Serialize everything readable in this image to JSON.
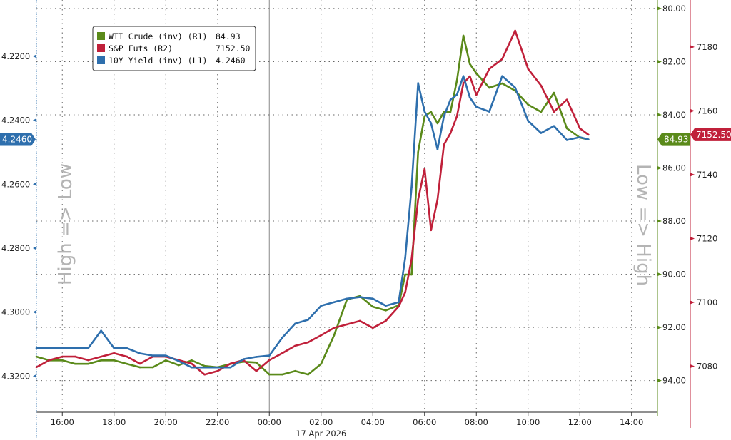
{
  "chart_data": {
    "type": "line",
    "x_axis": {
      "tick_labels": [
        "16:00",
        "18:00",
        "20:00",
        "22:00",
        "00:00",
        "02:00",
        "04:00",
        "06:00",
        "08:00",
        "10:00",
        "12:00",
        "14:00"
      ],
      "date_label": "17 Apr 2026",
      "range": [
        "2026-04-16 15:00",
        "2026-04-17 15:00"
      ]
    },
    "y_axes": {
      "L1": {
        "ticks": [
          "4.2200",
          "4.2400",
          "4.2600",
          "4.2800",
          "4.3000",
          "4.3200"
        ],
        "range": [
          4.2024,
          4.3313
        ],
        "inverted": true,
        "title": "High => Low",
        "color": "#2e6fad"
      },
      "R1": {
        "ticks": [
          "80.00",
          "82.00",
          "84.00",
          "86.00",
          "88.00",
          "90.00",
          "92.00",
          "94.00"
        ],
        "range": [
          79.68,
          95.19
        ],
        "inverted": true,
        "title": "Low => High",
        "color": "#5a8a1a"
      },
      "R2": {
        "ticks": [
          "7080",
          "7100",
          "7120",
          "7140",
          "7160",
          "7180"
        ],
        "range": [
          7065.6,
          7194.7
        ],
        "inverted": false,
        "color": "#c0203a"
      }
    },
    "grid": true,
    "legend_position": "top-left",
    "x": [
      "2026-04-16 15:00",
      "2026-04-16 15:30",
      "2026-04-16 16:00",
      "2026-04-16 16:30",
      "2026-04-16 17:00",
      "2026-04-16 17:30",
      "2026-04-16 18:00",
      "2026-04-16 18:30",
      "2026-04-16 19:00",
      "2026-04-16 19:30",
      "2026-04-16 20:00",
      "2026-04-16 20:30",
      "2026-04-16 21:00",
      "2026-04-16 21:30",
      "2026-04-16 22:00",
      "2026-04-16 22:30",
      "2026-04-16 23:00",
      "2026-04-16 23:30",
      "2026-04-17 00:00",
      "2026-04-17 00:30",
      "2026-04-17 01:00",
      "2026-04-17 01:30",
      "2026-04-17 02:00",
      "2026-04-17 02:30",
      "2026-04-17 03:00",
      "2026-04-17 03:30",
      "2026-04-17 04:00",
      "2026-04-17 04:30",
      "2026-04-17 05:00",
      "2026-04-17 05:15",
      "2026-04-17 05:30",
      "2026-04-17 05:45",
      "2026-04-17 06:00",
      "2026-04-17 06:15",
      "2026-04-17 06:30",
      "2026-04-17 06:45",
      "2026-04-17 07:00",
      "2026-04-17 07:15",
      "2026-04-17 07:30",
      "2026-04-17 07:45",
      "2026-04-17 08:00",
      "2026-04-17 08:30",
      "2026-04-17 09:00",
      "2026-04-17 09:30",
      "2026-04-17 10:00",
      "2026-04-17 10:30",
      "2026-04-17 11:00",
      "2026-04-17 11:30",
      "2026-04-17 12:00",
      "2026-04-17 12:20"
    ],
    "series": [
      {
        "name": "WTI Crude (inv) (R1)",
        "last": "84.93",
        "axis": "R1",
        "color": "#5a8a1a",
        "values": [
          93.1,
          93.24,
          93.24,
          93.37,
          93.37,
          93.24,
          93.24,
          93.37,
          93.5,
          93.5,
          93.24,
          93.42,
          93.24,
          93.45,
          93.5,
          93.37,
          93.29,
          93.32,
          93.77,
          93.77,
          93.64,
          93.77,
          93.37,
          92.3,
          90.95,
          90.82,
          91.22,
          91.36,
          91.17,
          90.01,
          90.01,
          85.4,
          84.05,
          83.89,
          84.32,
          83.89,
          83.89,
          82.71,
          81.02,
          82.09,
          82.44,
          82.98,
          82.82,
          83.09,
          83.62,
          83.89,
          83.17,
          84.51,
          84.86,
          84.93
        ]
      },
      {
        "name": "S&P Futs (R2)",
        "last": "7152.50",
        "axis": "R2",
        "color": "#c0203a",
        "values": [
          7079.7,
          7081.9,
          7083.0,
          7083.0,
          7081.9,
          7083.0,
          7084.1,
          7083.0,
          7080.8,
          7083.0,
          7083.0,
          7081.9,
          7080.8,
          7077.4,
          7078.5,
          7080.8,
          7081.9,
          7078.5,
          7081.9,
          7084.1,
          7086.4,
          7087.5,
          7089.7,
          7092.0,
          7093.1,
          7094.2,
          7092.0,
          7094.2,
          7098.7,
          7103.1,
          7113.6,
          7132.2,
          7141.8,
          7122.6,
          7132.2,
          7149.4,
          7153.0,
          7158.3,
          7168.6,
          7170.8,
          7165.0,
          7173.1,
          7176.2,
          7185.1,
          7173.1,
          7167.9,
          7159.7,
          7163.5,
          7154.5,
          7152.5
        ]
      },
      {
        "name": "10Y Yield (inv) (L1)",
        "last": "4.2460",
        "axis": "L1",
        "color": "#2e6fad",
        "values": [
          4.3113,
          4.3113,
          4.3113,
          4.3113,
          4.3113,
          4.3058,
          4.3113,
          4.3113,
          4.3129,
          4.3136,
          4.3136,
          4.3153,
          4.3173,
          4.3173,
          4.3173,
          4.3173,
          4.3147,
          4.314,
          4.3136,
          4.308,
          4.3036,
          4.3024,
          4.298,
          4.2969,
          4.2958,
          4.2953,
          4.2958,
          4.298,
          4.2969,
          4.2831,
          4.2609,
          4.2284,
          4.2373,
          4.2409,
          4.2491,
          4.2387,
          4.2336,
          4.232,
          4.2262,
          4.2329,
          4.2358,
          4.2373,
          4.2262,
          4.2298,
          4.2402,
          4.244,
          4.2418,
          4.2462,
          4.2453,
          4.246
        ]
      }
    ]
  }
}
